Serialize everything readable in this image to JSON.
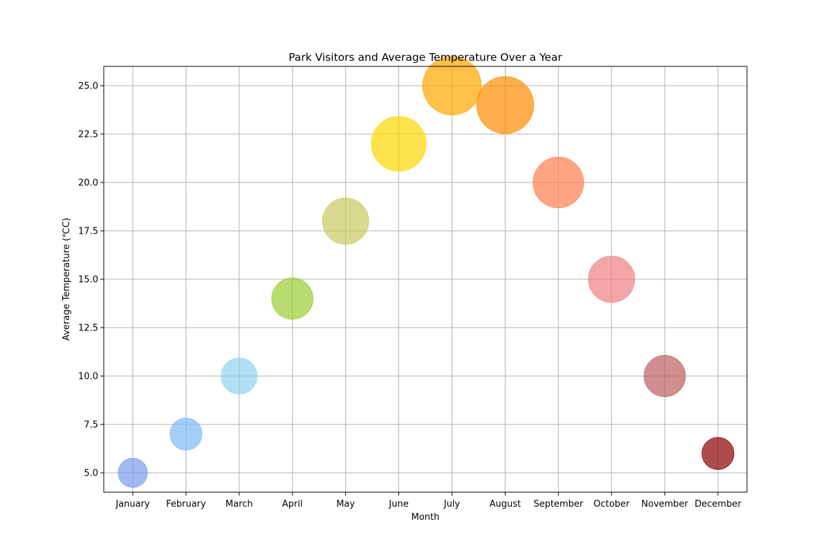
{
  "chart_data": {
    "type": "scatter",
    "title": "Park Visitors and Average Temperature Over a Year",
    "xlabel": "Month",
    "ylabel": "Average Temperature (℃C)",
    "categories": [
      "January",
      "February",
      "March",
      "April",
      "May",
      "June",
      "July",
      "August",
      "September",
      "October",
      "November",
      "December"
    ],
    "values": [
      5,
      7,
      10,
      14,
      18,
      22,
      25,
      24,
      20,
      15,
      10,
      6
    ],
    "bubble_size": [
      1000,
      1200,
      1500,
      2000,
      2500,
      3500,
      4000,
      3800,
      3000,
      2500,
      2000,
      1200
    ],
    "colors": [
      "#7b9ded",
      "#7cbbf2",
      "#91d2f0",
      "#9acd32",
      "#c9c95f",
      "#ffd700",
      "#ffa500",
      "#ff8c00",
      "#ff7f50",
      "#f08080",
      "#bc5f5f",
      "#8b0000"
    ],
    "opacity": 0.7,
    "ylim": [
      4,
      26
    ],
    "yticks": [
      "5.0",
      "7.5",
      "10.0",
      "12.5",
      "15.0",
      "17.5",
      "20.0",
      "22.5",
      "25.0"
    ],
    "grid": true,
    "legend": "none"
  }
}
